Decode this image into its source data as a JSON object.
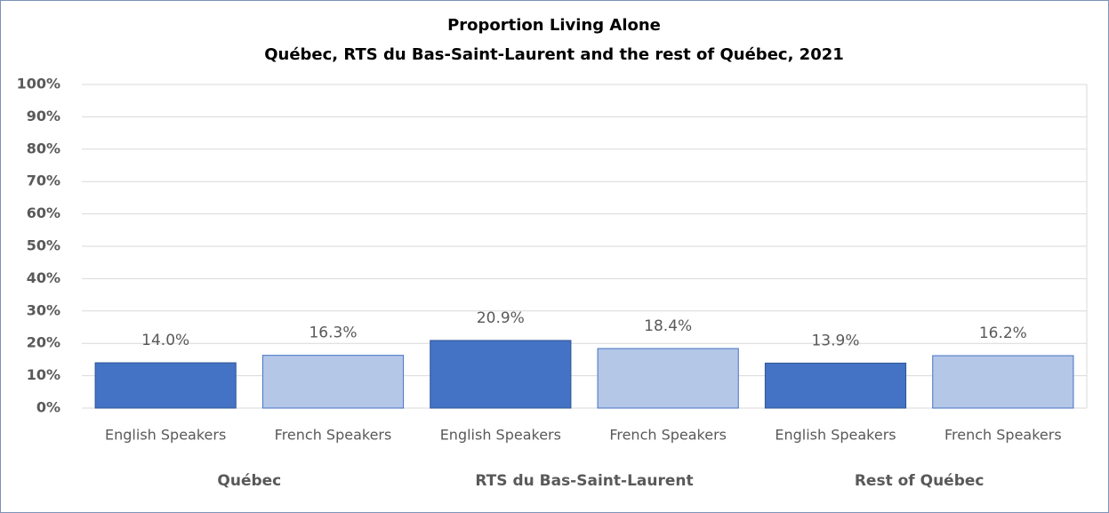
{
  "chart_data": {
    "type": "bar",
    "title": "Proportion Living Alone",
    "subtitle": "Québec, RTS du Bas-Saint-Laurent and the rest of Québec, 2021",
    "groups": [
      {
        "name": "Québec",
        "categories": [
          "English Speakers",
          "French Speakers"
        ],
        "values": [
          14.0,
          16.3
        ],
        "value_labels": [
          "14.0%",
          "16.3%"
        ]
      },
      {
        "name": "RTS du Bas-Saint-Laurent",
        "categories": [
          "English Speakers",
          "French Speakers"
        ],
        "values": [
          20.9,
          18.4
        ],
        "value_labels": [
          "20.9%",
          "18.4%"
        ]
      },
      {
        "name": "Rest of Québec",
        "categories": [
          "English Speakers",
          "French Speakers"
        ],
        "values": [
          13.9,
          16.2
        ],
        "value_labels": [
          "13.9%",
          "16.2%"
        ]
      }
    ],
    "colors": [
      "#4472c4",
      "#b4c7e7"
    ],
    "ylim": [
      0,
      100
    ],
    "yticks": [
      {
        "value": 0,
        "label": "0%"
      },
      {
        "value": 10,
        "label": "10%"
      },
      {
        "value": 20,
        "label": "20%"
      },
      {
        "value": 30,
        "label": "30%"
      },
      {
        "value": 40,
        "label": "40%"
      },
      {
        "value": 50,
        "label": "50%"
      },
      {
        "value": 60,
        "label": "60%"
      },
      {
        "value": 70,
        "label": "70%"
      },
      {
        "value": 80,
        "label": "80%"
      },
      {
        "value": 90,
        "label": "90%"
      },
      {
        "value": 100,
        "label": "100%"
      }
    ],
    "grid": true
  }
}
